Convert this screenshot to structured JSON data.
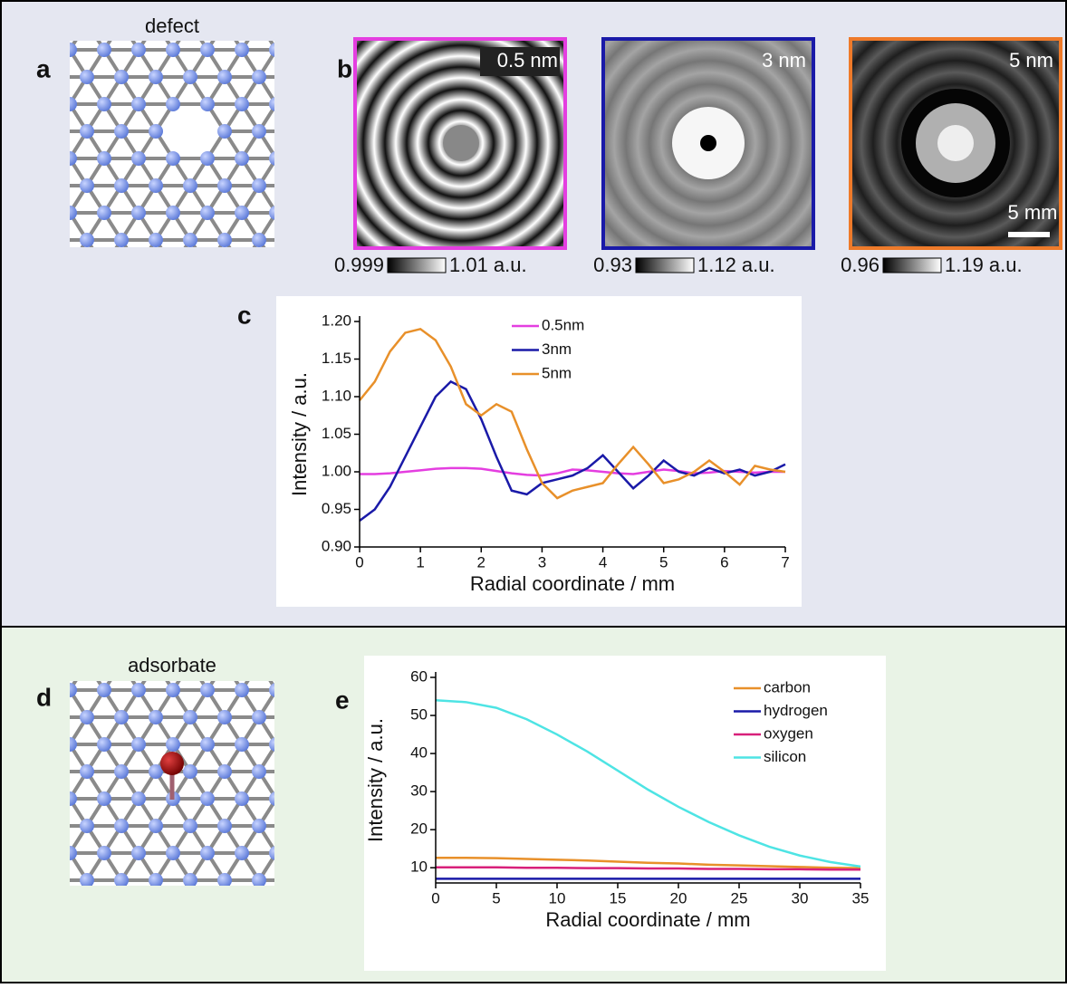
{
  "panels": {
    "a": {
      "label": "a",
      "title": "defect"
    },
    "b": {
      "label": "b",
      "images": [
        {
          "label": "0.5 nm",
          "color": "#e43ee0",
          "cbar_min": "0.999",
          "cbar_max": "1.01 a.u."
        },
        {
          "label": "3 nm",
          "color": "#1a1aa8",
          "cbar_min": "0.93",
          "cbar_max": "1.12 a.u."
        },
        {
          "label": "5 nm",
          "color": "#ee7a2a",
          "cbar_min": "0.96",
          "cbar_max": "1.19 a.u."
        }
      ],
      "scale_bar": "5 mm"
    },
    "d": {
      "label": "d",
      "title": "adsorbate"
    }
  },
  "chart_data": [
    {
      "type": "line",
      "label": "c",
      "x_label": "Radial coordinate / mm",
      "y_label": "Intensity / a.u.",
      "x": [
        0,
        0.25,
        0.5,
        0.75,
        1,
        1.25,
        1.5,
        1.75,
        2,
        2.25,
        2.5,
        2.75,
        3,
        3.25,
        3.5,
        3.75,
        4,
        4.25,
        4.5,
        4.75,
        5,
        5.25,
        5.5,
        5.75,
        6,
        6.25,
        6.5,
        6.75,
        7
      ],
      "series": [
        {
          "name": "0.5nm",
          "color": "#e43ee0",
          "values": [
            0.997,
            0.997,
            0.998,
            1.0,
            1.002,
            1.004,
            1.005,
            1.005,
            1.004,
            1.001,
            0.998,
            0.996,
            0.995,
            0.998,
            1.003,
            1.002,
            1.0,
            0.998,
            0.997,
            1.0,
            1.003,
            1.001,
            0.998,
            0.999,
            1.001,
            1.0,
            0.999,
            1.0,
            1.0
          ]
        },
        {
          "name": "3nm",
          "color": "#1a1aa8",
          "values": [
            0.935,
            0.95,
            0.98,
            1.02,
            1.06,
            1.1,
            1.12,
            1.11,
            1.07,
            1.02,
            0.975,
            0.97,
            0.985,
            0.99,
            0.995,
            1.005,
            1.022,
            1.0,
            0.978,
            0.995,
            1.015,
            1.0,
            0.995,
            1.005,
            0.998,
            1.003,
            0.995,
            1.0,
            1.01
          ]
        },
        {
          "name": "5nm",
          "color": "#e8902a",
          "values": [
            1.095,
            1.12,
            1.16,
            1.185,
            1.19,
            1.175,
            1.14,
            1.09,
            1.075,
            1.09,
            1.08,
            1.03,
            0.985,
            0.965,
            0.975,
            0.98,
            0.985,
            1.01,
            1.033,
            1.01,
            0.985,
            0.99,
            1.0,
            1.015,
            1.0,
            0.983,
            1.008,
            1.003,
            1.0
          ]
        }
      ],
      "xlim": [
        0,
        7
      ],
      "xticks": [
        0,
        1,
        2,
        3,
        4,
        5,
        6,
        7
      ],
      "ylim": [
        0.9,
        1.2
      ],
      "yticks": [
        {
          "value": 0.9,
          "label": "0.90"
        },
        {
          "value": 0.95,
          "label": "0.95"
        },
        {
          "value": 1.0,
          "label": "1.00"
        },
        {
          "value": 1.05,
          "label": "1.05"
        },
        {
          "value": 1.1,
          "label": "1.10"
        },
        {
          "value": 1.15,
          "label": "1.15"
        },
        {
          "value": 1.2,
          "label": "1.20"
        }
      ],
      "legend": "top-center"
    },
    {
      "type": "line",
      "label": "e",
      "x_label": "Radial coordinate / mm",
      "y_label": "Intensity / a.u.",
      "x": [
        0,
        2.5,
        5,
        7.5,
        10,
        12.5,
        15,
        17.5,
        20,
        22.5,
        25,
        27.5,
        30,
        32.5,
        35
      ],
      "series": [
        {
          "name": "carbon",
          "color": "#e8902a",
          "values": [
            12.6,
            12.6,
            12.5,
            12.3,
            12.1,
            11.9,
            11.6,
            11.3,
            11.1,
            10.8,
            10.6,
            10.4,
            10.2,
            10.0,
            9.9
          ]
        },
        {
          "name": "hydrogen",
          "color": "#1a1aa8",
          "values": [
            7.1,
            7.1,
            7.1,
            7.1,
            7.1,
            7.1,
            7.1,
            7.1,
            7.1,
            7.1,
            7.1,
            7.1,
            7.1,
            7.1,
            7.1
          ]
        },
        {
          "name": "oxygen",
          "color": "#d8207a",
          "values": [
            10.1,
            10.1,
            10.1,
            10.0,
            10.0,
            9.9,
            9.9,
            9.8,
            9.8,
            9.7,
            9.7,
            9.6,
            9.6,
            9.5,
            9.5
          ]
        },
        {
          "name": "silicon",
          "color": "#4ee4e4",
          "values": [
            54,
            53.5,
            52,
            49,
            45,
            40.5,
            35.5,
            30.5,
            26,
            22,
            18.5,
            15.5,
            13.2,
            11.5,
            10.3
          ]
        }
      ],
      "xlim": [
        0,
        35
      ],
      "xticks": [
        0,
        5,
        10,
        15,
        20,
        25,
        30,
        35
      ],
      "ylim": [
        6,
        60
      ],
      "yticks": [
        10,
        20,
        30,
        40,
        50,
        60
      ],
      "legend": "top-right"
    }
  ]
}
